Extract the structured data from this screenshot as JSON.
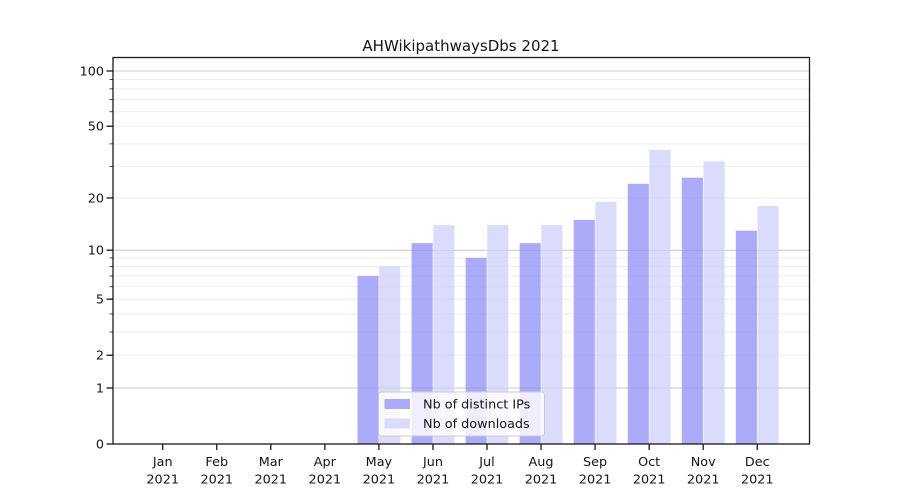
{
  "title": "AHWikipathwaysDbs 2021",
  "chart_data": {
    "type": "bar",
    "title": "AHWikipathwaysDbs 2021",
    "categories": [
      "Jan",
      "Feb",
      "Mar",
      "Apr",
      "May",
      "Jun",
      "Jul",
      "Aug",
      "Sep",
      "Oct",
      "Nov",
      "Dec"
    ],
    "x_tick_year": "2021",
    "series": [
      {
        "name": "Nb of distinct IPs",
        "color": "#ababfa",
        "values": [
          0,
          0,
          0,
          0,
          7,
          11,
          9,
          11,
          15,
          24,
          26,
          13
        ]
      },
      {
        "name": "Nb of downloads",
        "color": "#dbdbfb",
        "values": [
          0,
          0,
          0,
          0,
          8,
          14,
          14,
          14,
          19,
          37,
          32,
          18
        ]
      }
    ],
    "yscale": "log1p",
    "yticks": [
      0,
      1,
      2,
      5,
      10,
      20,
      50,
      100
    ],
    "ylim": [
      0,
      118
    ],
    "grid": true,
    "legend_position": "lower center"
  },
  "legend": {
    "items": [
      {
        "label": "Nb of distinct IPs",
        "swatch_color": "#ababfa"
      },
      {
        "label": "Nb of downloads",
        "swatch_color": "#dbdbfb"
      }
    ]
  },
  "colors": {
    "bar_ips_base": "rgb(143,143,248)",
    "bar_downloads_base": "rgb(207,207,249)",
    "bar_opacity": "0.75",
    "grid_minor": "#ededed",
    "grid_major": "#c8c8c8",
    "axis": "#1a1a1a",
    "text": "#151515",
    "legend_border": "#cccccc",
    "legend_bg": "rgba(255,255,255,0.8)"
  }
}
